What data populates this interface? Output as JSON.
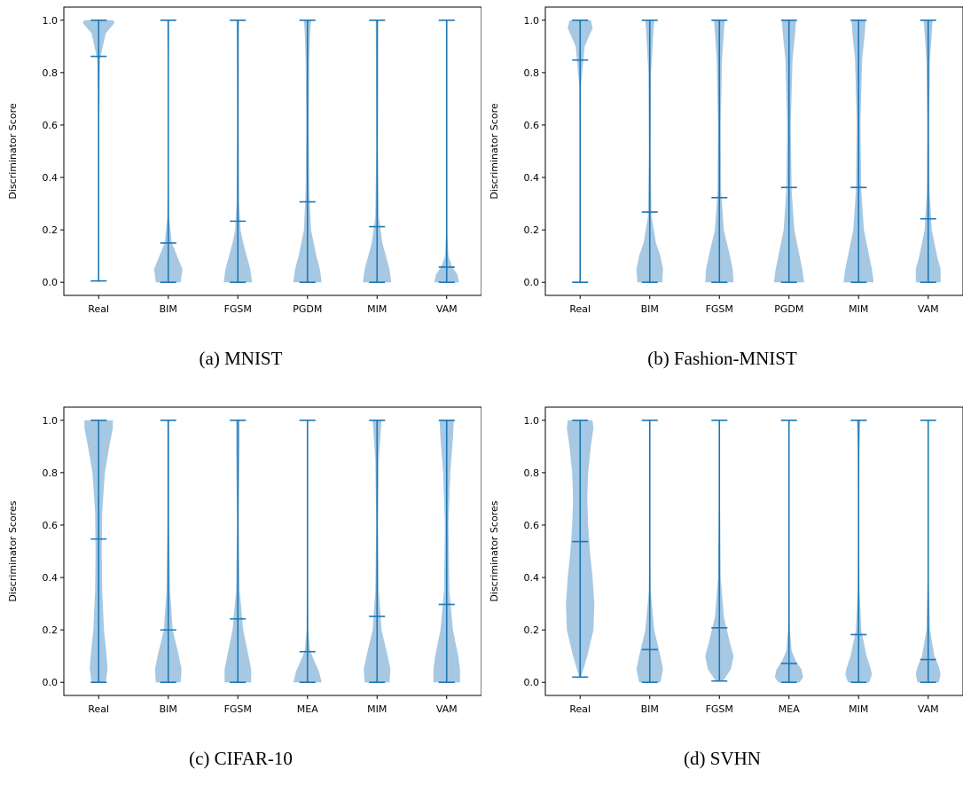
{
  "colors": {
    "body": "#a6c8e3",
    "line": "#1f77b4",
    "axis": "#000000"
  },
  "chart_data": [
    {
      "type": "violin",
      "caption": "(a) MNIST",
      "ylabel": "Discriminator Score",
      "ylim": [
        -0.05,
        1.05
      ],
      "yticks": [
        "0.0",
        "0.2",
        "0.4",
        "0.6",
        "0.8",
        "1.0"
      ],
      "categories": [
        "Real",
        "BIM",
        "FGSM",
        "PGDM",
        "MIM",
        "VAM"
      ],
      "min": [
        0.005,
        0.0,
        0.0,
        0.0,
        0.0,
        0.0
      ],
      "max": [
        1.0,
        1.0,
        1.0,
        1.0,
        1.0,
        1.0
      ],
      "mean": [
        0.862,
        0.15,
        0.233,
        0.307,
        0.212,
        0.058
      ]
    },
    {
      "type": "violin",
      "caption": "(b) Fashion-MNIST",
      "ylabel": "Discriminator Score",
      "ylim": [
        -0.05,
        1.05
      ],
      "yticks": [
        "0.0",
        "0.2",
        "0.4",
        "0.6",
        "0.8",
        "1.0"
      ],
      "categories": [
        "Real",
        "BIM",
        "FGSM",
        "PGDM",
        "MIM",
        "VAM"
      ],
      "min": [
        0.0,
        0.0,
        0.0,
        0.0,
        0.0,
        0.0
      ],
      "max": [
        1.0,
        1.0,
        1.0,
        1.0,
        1.0,
        1.0
      ],
      "mean": [
        0.848,
        0.268,
        0.323,
        0.362,
        0.362,
        0.242
      ]
    },
    {
      "type": "violin",
      "caption": "(c) CIFAR-10",
      "ylabel": "Discriminator Scores",
      "ylim": [
        -0.05,
        1.05
      ],
      "yticks": [
        "0.0",
        "0.2",
        "0.4",
        "0.6",
        "0.8",
        "1.0"
      ],
      "categories": [
        "Real",
        "BIM",
        "FGSM",
        "MEA",
        "MIM",
        "VAM"
      ],
      "min": [
        0.0,
        0.0,
        0.0,
        0.0,
        0.0,
        0.0
      ],
      "max": [
        1.0,
        1.0,
        1.0,
        1.0,
        1.0,
        1.0
      ],
      "mean": [
        0.547,
        0.2,
        0.242,
        0.117,
        0.252,
        0.297
      ]
    },
    {
      "type": "violin",
      "caption": "(d) SVHN",
      "ylabel": "Discriminator Scores",
      "ylim": [
        -0.05,
        1.05
      ],
      "yticks": [
        "0.0",
        "0.2",
        "0.4",
        "0.6",
        "0.8",
        "1.0"
      ],
      "categories": [
        "Real",
        "BIM",
        "FGSM",
        "MEA",
        "MIM",
        "VAM"
      ],
      "min": [
        0.02,
        0.0,
        0.005,
        0.0,
        0.0,
        0.0
      ],
      "max": [
        1.0,
        1.0,
        1.0,
        1.0,
        1.0,
        1.0
      ],
      "mean": [
        0.537,
        0.125,
        0.208,
        0.072,
        0.182,
        0.087
      ]
    }
  ]
}
